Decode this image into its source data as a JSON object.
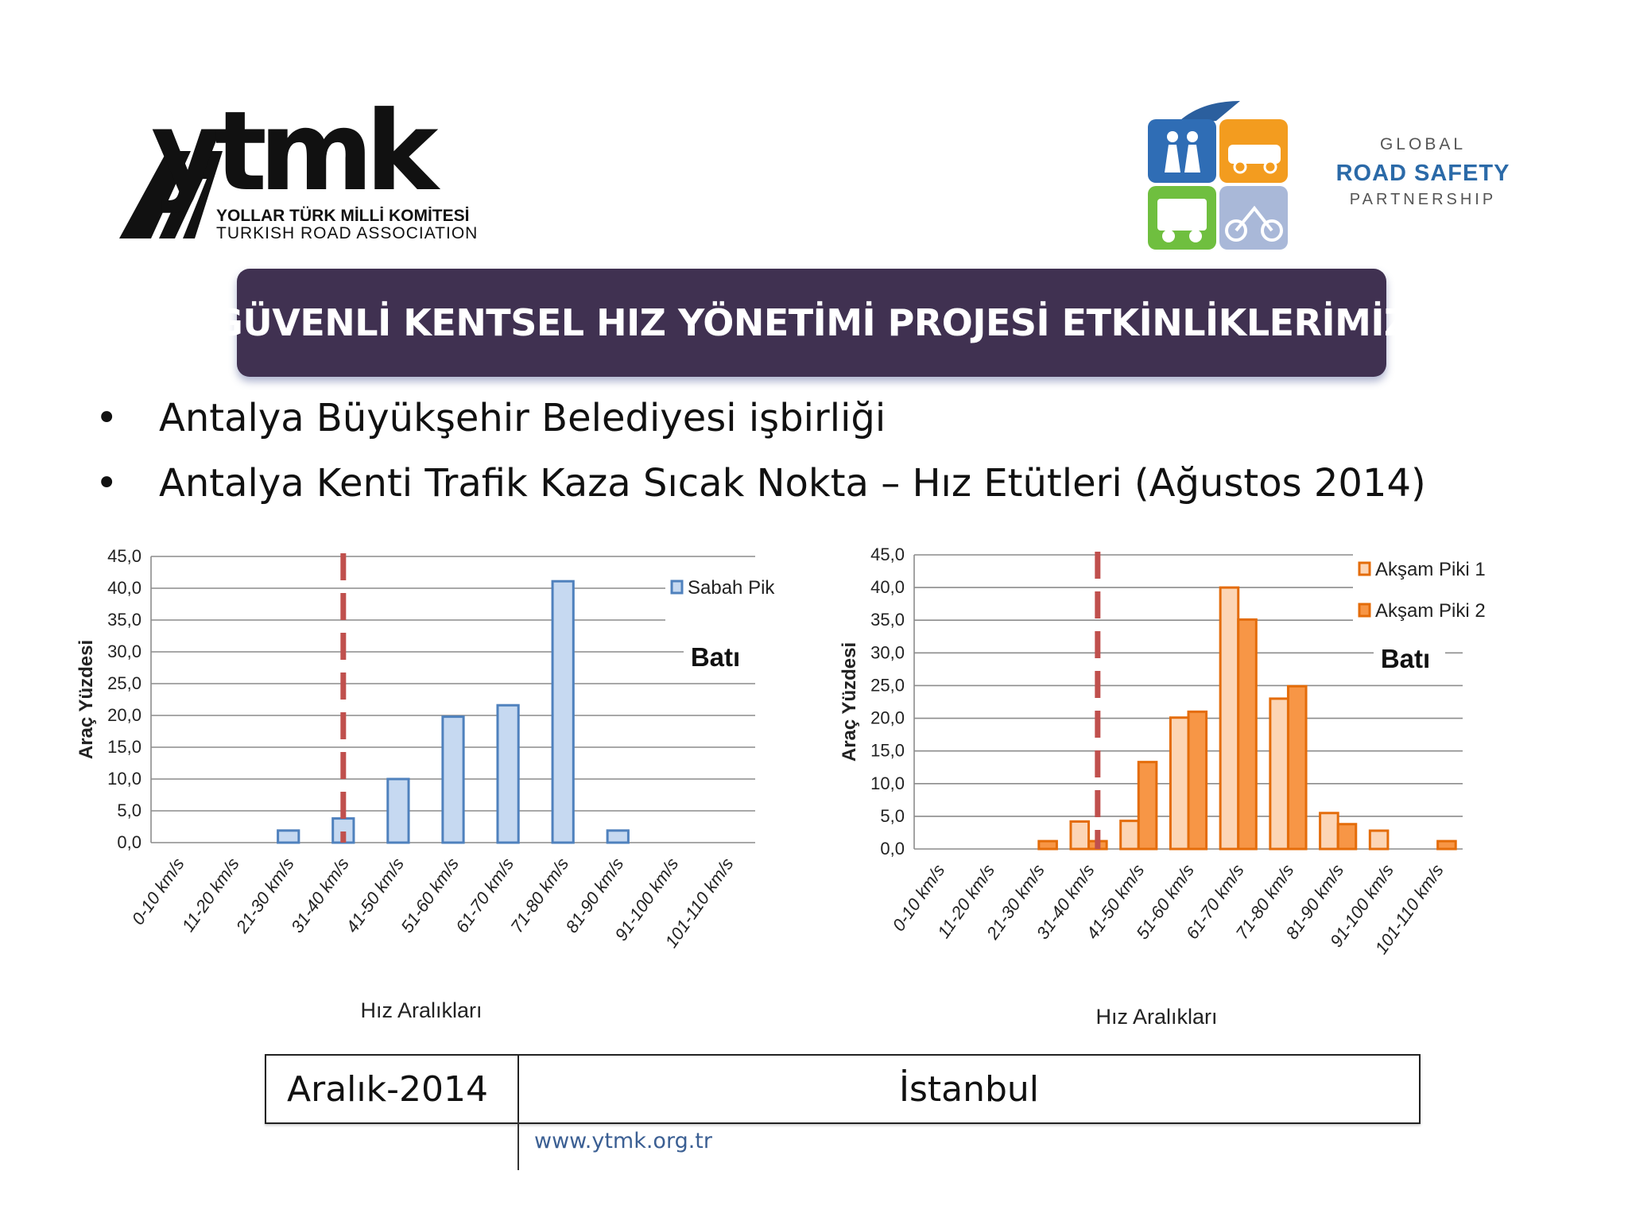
{
  "header": {
    "ytmk_logo": {
      "wordmark": "ytmk",
      "line1": "YOLLAR TÜRK MİLLİ KOMİTESİ",
      "line2": "TURKISH ROAD ASSOCIATION"
    },
    "grsp_logo": {
      "line1": "GLOBAL",
      "line2": "ROAD SAFETY",
      "line3": "PARTNERSHIP"
    }
  },
  "title": "GÜVENLİ KENTSEL HIZ YÖNETİMİ PROJESİ ETKİNLİKLERİMİZ",
  "bullets": [
    "Antalya Büyükşehir Belediyesi işbirliği",
    "Antalya Kenti Trafik Kaza Sıcak Nokta – Hız Etütleri (Ağustos 2014)"
  ],
  "colors": {
    "banner": "#403151",
    "sabah_fill": "#c6d9f1",
    "sabah_stroke": "#4f81bd",
    "aksam1_fill": "#fcd5b5",
    "aksam2_fill": "#f79646",
    "aksam_stroke": "#e46c0a",
    "threshold": "#c0504d"
  },
  "chart_data": [
    {
      "type": "bar",
      "title": "",
      "direction_label": "Batı",
      "categories": [
        "0-10 km/s",
        "11-20 km/s",
        "21-30 km/s",
        "31-40 km/s",
        "41-50 km/s",
        "51-60 km/s",
        "61-70 km/s",
        "71-80 km/s",
        "81-90 km/s",
        "91-100 km/s",
        "101-110 km/s"
      ],
      "series": [
        {
          "name": "Sabah Pik",
          "values": [
            0,
            0,
            1.9,
            3.8,
            10.0,
            19.8,
            21.6,
            41.1,
            1.9,
            0,
            0
          ]
        }
      ],
      "xlabel": "Hız Aralıkları",
      "ylabel": "Araç Yüzdesi",
      "ylim": [
        0,
        45
      ],
      "yticks": [
        "0,0",
        "5,0",
        "10,0",
        "15,0",
        "20,0",
        "25,0",
        "30,0",
        "35,0",
        "40,0",
        "45,0"
      ],
      "threshold_after_index": 3.5,
      "legend_position": "right"
    },
    {
      "type": "bar",
      "title": "",
      "direction_label": "Batı",
      "categories": [
        "0-10 km/s",
        "11-20 km/s",
        "21-30 km/s",
        "31-40 km/s",
        "41-50 km/s",
        "51-60 km/s",
        "61-70 km/s",
        "71-80 km/s",
        "81-90 km/s",
        "91-100 km/s",
        "101-110 km/s"
      ],
      "series": [
        {
          "name": "Akşam Piki 1",
          "values": [
            0,
            0,
            0,
            4.2,
            4.3,
            20.1,
            40.0,
            23.0,
            5.5,
            2.8,
            0
          ]
        },
        {
          "name": "Akşam Piki 2",
          "values": [
            0,
            0,
            1.2,
            1.2,
            13.3,
            21.0,
            35.1,
            24.9,
            3.8,
            0,
            1.2
          ]
        }
      ],
      "xlabel": "Hız Aralıkları",
      "ylabel": "Araç Yüzdesi",
      "ylim": [
        0,
        45
      ],
      "yticks": [
        "0,0",
        "5,0",
        "10,0",
        "15,0",
        "20,0",
        "25,0",
        "30,0",
        "35,0",
        "40,0",
        "45,0"
      ],
      "threshold_after_index": 3.68,
      "legend_position": "top-right"
    }
  ],
  "footer": {
    "date": "Aralık-2014",
    "city": "İstanbul",
    "url": "www.ytmk.org.tr"
  }
}
